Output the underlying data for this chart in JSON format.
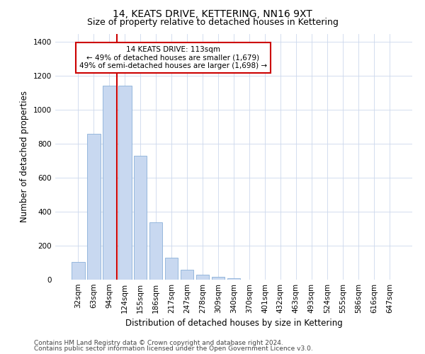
{
  "title": "14, KEATS DRIVE, KETTERING, NN16 9XT",
  "subtitle": "Size of property relative to detached houses in Kettering",
  "xlabel": "Distribution of detached houses by size in Kettering",
  "ylabel": "Number of detached properties",
  "bins": [
    "32sqm",
    "63sqm",
    "94sqm",
    "124sqm",
    "155sqm",
    "186sqm",
    "217sqm",
    "247sqm",
    "278sqm",
    "309sqm",
    "340sqm",
    "370sqm",
    "401sqm",
    "432sqm",
    "463sqm",
    "493sqm",
    "524sqm",
    "555sqm",
    "586sqm",
    "616sqm",
    "647sqm"
  ],
  "bar_values": [
    105,
    860,
    1145,
    1145,
    730,
    340,
    130,
    60,
    30,
    18,
    10,
    0,
    0,
    0,
    0,
    0,
    0,
    0,
    0,
    0,
    0
  ],
  "bar_color": "#c8d8f0",
  "bar_edge_color": "#8ab0d8",
  "vline_color": "#cc0000",
  "vline_pos": 2.5,
  "annotation_text": "14 KEATS DRIVE: 113sqm\n← 49% of detached houses are smaller (1,679)\n49% of semi-detached houses are larger (1,698) →",
  "annotation_box_facecolor": "#ffffff",
  "annotation_box_edgecolor": "#cc0000",
  "ylim": [
    0,
    1450
  ],
  "yticks": [
    0,
    200,
    400,
    600,
    800,
    1000,
    1200,
    1400
  ],
  "footer_line1": "Contains HM Land Registry data © Crown copyright and database right 2024.",
  "footer_line2": "Contains public sector information licensed under the Open Government Licence v3.0.",
  "title_fontsize": 10,
  "subtitle_fontsize": 9,
  "axis_label_fontsize": 8.5,
  "tick_fontsize": 7.5,
  "annotation_fontsize": 7.5,
  "footer_fontsize": 6.5,
  "grid_color": "#ccd8ec",
  "bg_color": "#ffffff"
}
